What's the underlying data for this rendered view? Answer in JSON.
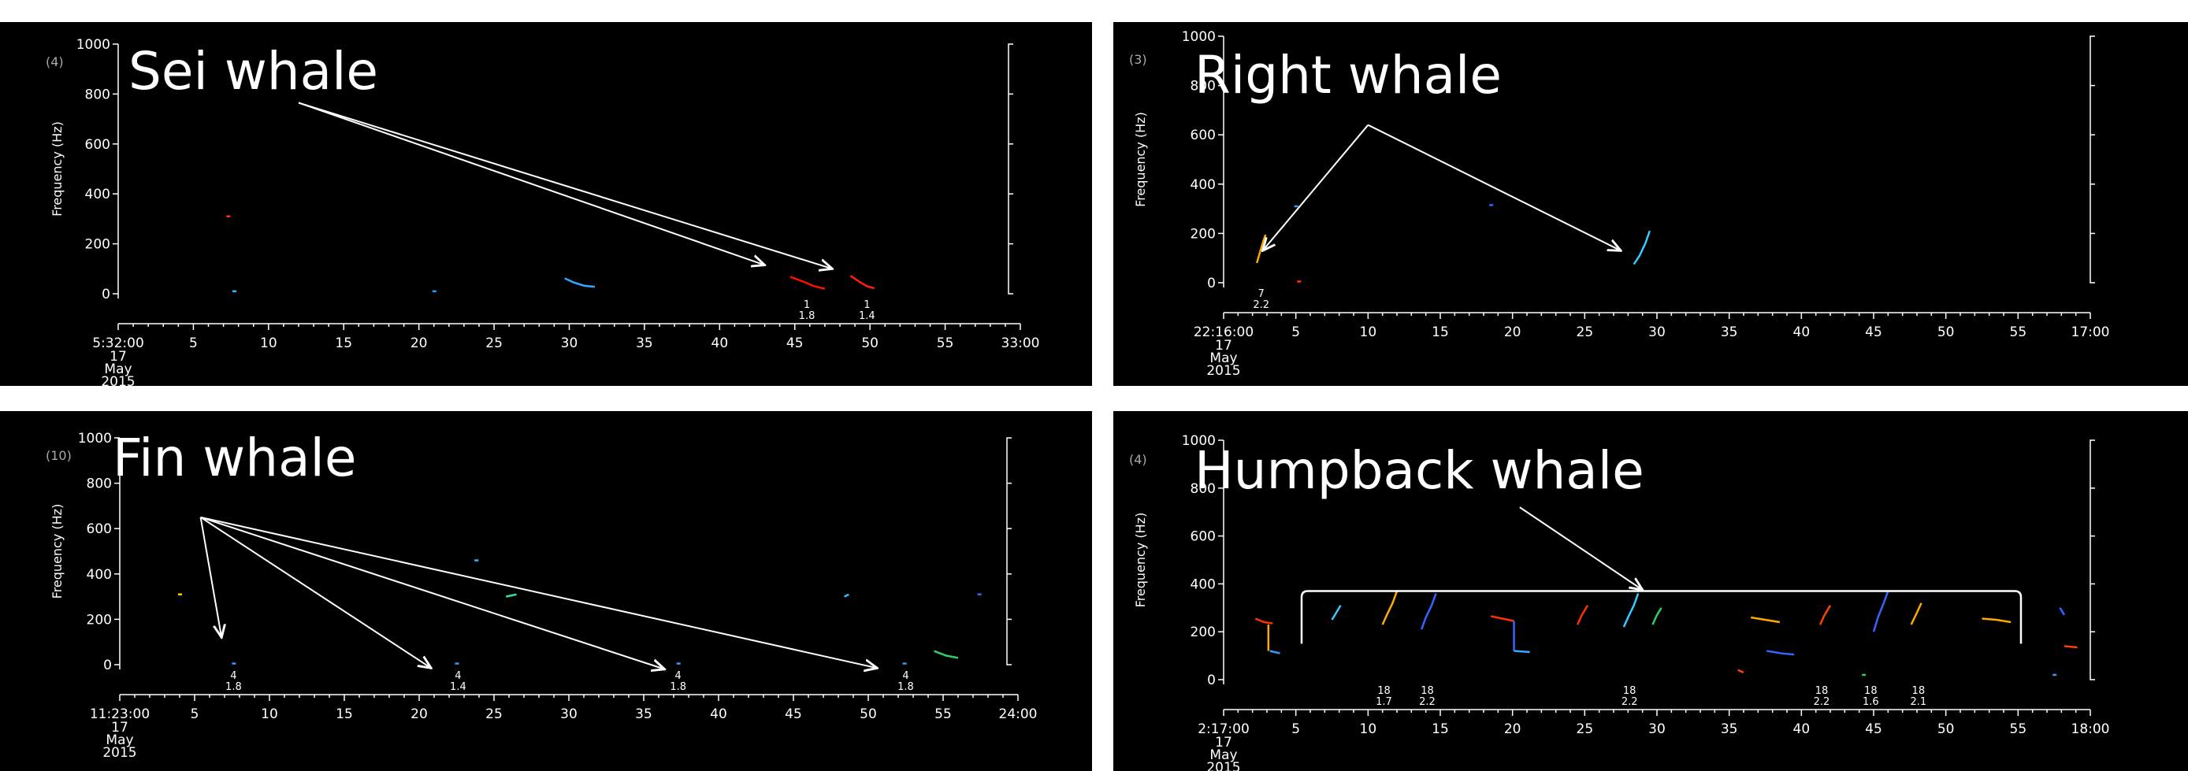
{
  "chart_data": [
    {
      "type": "scatter",
      "title": "Sei whale",
      "panel_count": "(4)",
      "ylabel": "Frequency (Hz)",
      "ylim": [
        0,
        1000
      ],
      "y_ticks": [
        0,
        200,
        400,
        600,
        800,
        1000
      ],
      "x_ticks": [
        "5:32:00",
        "5",
        "10",
        "15",
        "20",
        "25",
        "30",
        "35",
        "40",
        "45",
        "50",
        "55",
        "33:00"
      ],
      "x_date_lines": [
        "17",
        "May",
        "2015"
      ],
      "xlim": [
        0,
        60
      ],
      "calls": [
        {
          "points": [
            [
              7.3,
              310
            ]
          ],
          "color": "#ff3300"
        },
        {
          "points": [
            [
              7.7,
              10
            ]
          ],
          "color": "#33bbff"
        },
        {
          "points": [
            [
              21,
              10
            ]
          ],
          "color": "#3399ff"
        },
        {
          "points": [
            [
              29.7,
              62
            ],
            [
              30.3,
              45
            ],
            [
              31,
              32
            ],
            [
              31.7,
              28
            ]
          ],
          "color": "#33aaff"
        },
        {
          "points": [
            [
              44.7,
              68
            ],
            [
              45.5,
              50
            ],
            [
              46.3,
              30
            ],
            [
              47,
              20
            ]
          ],
          "color": "#ff1100"
        },
        {
          "points": [
            [
              48.7,
              72
            ],
            [
              49.3,
              48
            ],
            [
              49.8,
              30
            ],
            [
              50.3,
              22
            ]
          ],
          "color": "#ff2200"
        }
      ],
      "detections": [
        {
          "x": 45.8,
          "top": "1",
          "bottom": "1.8"
        },
        {
          "x": 49.8,
          "top": "1",
          "bottom": "1.4"
        }
      ],
      "arrows": {
        "origin": [
          12,
          765
        ],
        "targets": [
          [
            43,
            115
          ],
          [
            47.5,
            100
          ]
        ]
      }
    },
    {
      "type": "scatter",
      "title": "Right whale",
      "panel_count": "(3)",
      "ylabel": "Frequency (Hz)",
      "ylim": [
        0,
        1000
      ],
      "y_ticks": [
        0,
        200,
        400,
        600,
        800,
        1000
      ],
      "x_ticks": [
        "22:16:00",
        "5",
        "10",
        "15",
        "20",
        "25",
        "30",
        "35",
        "40",
        "45",
        "50",
        "55",
        "17:00"
      ],
      "x_date_lines": [
        "17",
        "May",
        "2015"
      ],
      "xlim": [
        0,
        60
      ],
      "calls": [
        {
          "points": [
            [
              2.3,
              80
            ],
            [
              2.5,
              120
            ],
            [
              2.7,
              160
            ],
            [
              2.9,
              195
            ]
          ],
          "color": "#ffaa00"
        },
        {
          "points": [
            [
              5,
              310
            ]
          ],
          "color": "#3399ff"
        },
        {
          "points": [
            [
              5.2,
              5
            ]
          ],
          "color": "#ff3300"
        },
        {
          "points": [
            [
              18.5,
              315
            ]
          ],
          "color": "#3366ff"
        },
        {
          "points": [
            [
              28.4,
              75
            ],
            [
              28.8,
              110
            ],
            [
              29.2,
              160
            ],
            [
              29.5,
              210
            ]
          ],
          "color": "#33ccff"
        }
      ],
      "detections": [
        {
          "x": 2.6,
          "top": "7",
          "bottom": "2.2"
        }
      ],
      "arrows": {
        "origin": [
          10,
          640
        ],
        "targets": [
          [
            2.7,
            130
          ],
          [
            27.5,
            130
          ]
        ]
      }
    },
    {
      "type": "scatter",
      "title": "Fin whale",
      "panel_count": "(10)",
      "ylabel": "Frequency (Hz)",
      "ylim": [
        0,
        1000
      ],
      "y_ticks": [
        0,
        200,
        400,
        600,
        800,
        1000
      ],
      "x_ticks": [
        "11:23:00",
        "5",
        "10",
        "15",
        "20",
        "25",
        "30",
        "35",
        "40",
        "45",
        "50",
        "55",
        "24:00"
      ],
      "x_date_lines": [
        "17",
        "May",
        "2015"
      ],
      "xlim": [
        0,
        60
      ],
      "calls": [
        {
          "points": [
            [
              4,
              310
            ]
          ],
          "color": "#ffcc00"
        },
        {
          "points": [
            [
              7.6,
              5
            ]
          ],
          "color": "#3399ff"
        },
        {
          "points": [
            [
              22.5,
              5
            ]
          ],
          "color": "#3399ff"
        },
        {
          "points": [
            [
              23.8,
              460
            ]
          ],
          "color": "#33bbff"
        },
        {
          "points": [
            [
              25.8,
              300
            ],
            [
              26.5,
              310
            ]
          ],
          "color": "#33ddaa"
        },
        {
          "points": [
            [
              37.3,
              5
            ]
          ],
          "color": "#3399ff"
        },
        {
          "points": [
            [
              48.4,
              300
            ],
            [
              48.7,
              310
            ]
          ],
          "color": "#33bbff"
        },
        {
          "points": [
            [
              52.4,
              5
            ]
          ],
          "color": "#3399ff"
        },
        {
          "points": [
            [
              54.4,
              60
            ],
            [
              55.2,
              40
            ],
            [
              56,
              30
            ]
          ],
          "color": "#33cc66"
        },
        {
          "points": [
            [
              57.4,
              310
            ]
          ],
          "color": "#3366ff"
        }
      ],
      "detections": [
        {
          "x": 7.6,
          "top": "4",
          "bottom": "1.8"
        },
        {
          "x": 22.6,
          "top": "4",
          "bottom": "1.4"
        },
        {
          "x": 37.3,
          "top": "4",
          "bottom": "1.8"
        },
        {
          "x": 52.5,
          "top": "4",
          "bottom": "1.8"
        }
      ],
      "arrows": {
        "origin": [
          5.4,
          650
        ],
        "targets": [
          [
            6.8,
            120
          ],
          [
            20.8,
            -15
          ],
          [
            36.4,
            -20
          ],
          [
            50.6,
            -15
          ]
        ]
      }
    },
    {
      "type": "scatter",
      "title": "Humpback whale",
      "panel_count": "(4)",
      "ylabel": "Frequency (Hz)",
      "ylim": [
        0,
        1000
      ],
      "y_ticks": [
        0,
        200,
        400,
        600,
        800,
        1000
      ],
      "x_ticks": [
        "2:17:00",
        "5",
        "10",
        "15",
        "20",
        "25",
        "30",
        "35",
        "40",
        "45",
        "50",
        "55",
        "18:00"
      ],
      "x_date_lines": [
        "17",
        "May",
        "2015"
      ],
      "xlim": [
        0,
        60
      ],
      "calls": [
        {
          "points": [
            [
              2.2,
              255
            ],
            [
              2.8,
              240
            ],
            [
              3.4,
              235
            ]
          ],
          "color": "#ff3300"
        },
        {
          "points": [
            [
              3.1,
              230
            ],
            [
              3.1,
              120
            ]
          ],
          "color": "#ffaa00"
        },
        {
          "points": [
            [
              3.2,
              120
            ],
            [
              3.9,
              110
            ]
          ],
          "color": "#3399ff"
        },
        {
          "points": [
            [
              7.5,
              250
            ],
            [
              7.8,
              280
            ],
            [
              8.1,
              310
            ]
          ],
          "color": "#33ccff"
        },
        {
          "points": [
            [
              11,
              230
            ],
            [
              11.3,
              270
            ],
            [
              11.7,
              320
            ],
            [
              12,
              370
            ]
          ],
          "color": "#ffaa00"
        },
        {
          "points": [
            [
              13.7,
              210
            ],
            [
              14,
              260
            ],
            [
              14.4,
              310
            ],
            [
              14.7,
              360
            ]
          ],
          "color": "#3366ff"
        },
        {
          "points": [
            [
              18.5,
              265
            ],
            [
              19.3,
              255
            ],
            [
              20.1,
              245
            ]
          ],
          "color": "#ff3300"
        },
        {
          "points": [
            [
              20.1,
              245
            ],
            [
              20.1,
              120
            ]
          ],
          "color": "#3366ff"
        },
        {
          "points": [
            [
              20.1,
              120
            ],
            [
              21.2,
              115
            ]
          ],
          "color": "#33aaff"
        },
        {
          "points": [
            [
              24.5,
              230
            ],
            [
              24.8,
              270
            ],
            [
              25.2,
              310
            ]
          ],
          "color": "#ff3300"
        },
        {
          "points": [
            [
              27.7,
              220
            ],
            [
              28,
              260
            ],
            [
              28.4,
              310
            ],
            [
              28.7,
              360
            ]
          ],
          "color": "#33ccff"
        },
        {
          "points": [
            [
              29.7,
              230
            ],
            [
              30,
              270
            ],
            [
              30.3,
              300
            ]
          ],
          "color": "#33cc66"
        },
        {
          "points": [
            [
              35.6,
              40
            ],
            [
              36,
              30
            ]
          ],
          "color": "#ff4400"
        },
        {
          "points": [
            [
              36.5,
              260
            ],
            [
              37.5,
              250
            ],
            [
              38.5,
              240
            ]
          ],
          "color": "#ffaa00"
        },
        {
          "points": [
            [
              37.6,
              120
            ],
            [
              38.6,
              110
            ],
            [
              39.5,
              105
            ]
          ],
          "color": "#3366ff"
        },
        {
          "points": [
            [
              41.3,
              230
            ],
            [
              41.6,
              270
            ],
            [
              42,
              310
            ]
          ],
          "color": "#ff4400"
        },
        {
          "points": [
            [
              44.3,
              20
            ]
          ],
          "color": "#33cc66"
        },
        {
          "points": [
            [
              45,
              200
            ],
            [
              45.3,
              260
            ],
            [
              45.7,
              320
            ],
            [
              46,
              370
            ]
          ],
          "color": "#3366ff"
        },
        {
          "points": [
            [
              47.6,
              230
            ],
            [
              48,
              280
            ],
            [
              48.3,
              320
            ]
          ],
          "color": "#ffaa00"
        },
        {
          "points": [
            [
              52.5,
              255
            ],
            [
              53.5,
              250
            ],
            [
              54.5,
              240
            ]
          ],
          "color": "#ffaa00"
        },
        {
          "points": [
            [
              57.5,
              20
            ]
          ],
          "color": "#3399ff"
        },
        {
          "points": [
            [
              57.9,
              300
            ],
            [
              58.2,
              270
            ]
          ],
          "color": "#3366ff"
        },
        {
          "points": [
            [
              58.2,
              140
            ],
            [
              59.1,
              135
            ]
          ],
          "color": "#ff4400"
        }
      ],
      "detections": [
        {
          "x": 11.1,
          "top": "18",
          "bottom": "1.7"
        },
        {
          "x": 14.1,
          "top": "18",
          "bottom": "2.2"
        },
        {
          "x": 28.1,
          "top": "18",
          "bottom": "2.2"
        },
        {
          "x": 41.4,
          "top": "18",
          "bottom": "2.2"
        },
        {
          "x": 44.8,
          "top": "18",
          "bottom": "1.6"
        },
        {
          "x": 48.1,
          "top": "18",
          "bottom": "2.1"
        }
      ],
      "bracket": {
        "x0": 5.4,
        "x1": 55.2,
        "y_top": 370,
        "y_bottom": 150
      },
      "arrows": {
        "origin": [
          20.5,
          720
        ],
        "targets": [
          [
            29,
            375
          ]
        ]
      }
    }
  ]
}
